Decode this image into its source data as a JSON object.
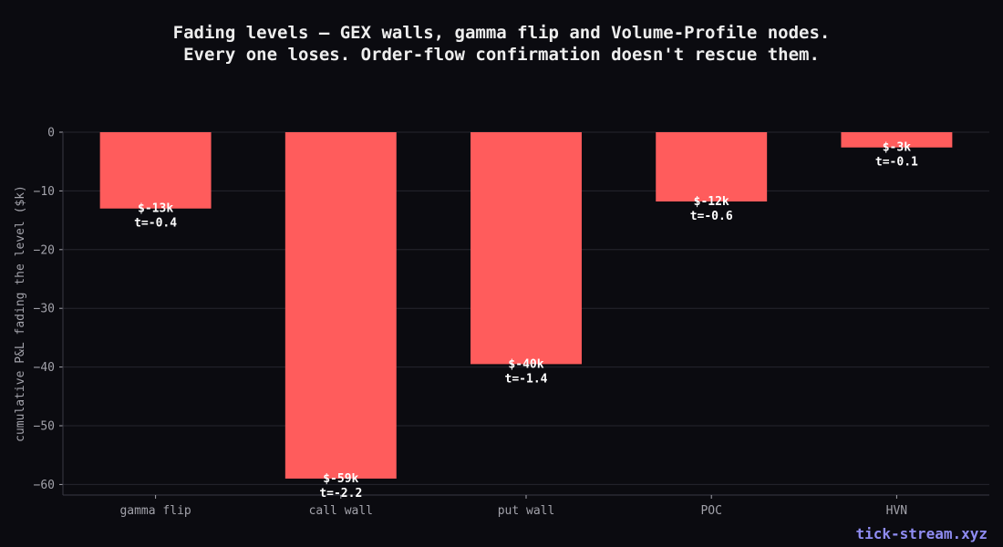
{
  "watermark": "tick-stream.xyz",
  "chart_data": {
    "type": "bar",
    "title_lines": [
      "Fading levels — GEX walls, gamma flip and Volume-Profile nodes.",
      "Every one loses. Order-flow confirmation doesn't rescue them."
    ],
    "xlabel": "",
    "ylabel": "cumulative P&L fading the level ($k)",
    "categories": [
      "gamma flip",
      "call wall",
      "put wall",
      "POC",
      "HVN"
    ],
    "values": [
      -13,
      -59,
      -39.5,
      -11.8,
      -2.6
    ],
    "bar_labels": [
      [
        "$-13k",
        "t=-0.4"
      ],
      [
        "$-59k",
        "t=-2.2"
      ],
      [
        "$-40k",
        "t=-1.4"
      ],
      [
        "$-12k",
        "t=-0.6"
      ],
      [
        "$-3k",
        "t=-0.1"
      ]
    ],
    "ylim": [
      -61.8,
      0
    ],
    "yticks": [
      0,
      -10,
      -20,
      -30,
      -40,
      -50,
      -60
    ],
    "ytick_labels": [
      "0",
      "−10",
      "−20",
      "−30",
      "−40",
      "−50",
      "−60"
    ],
    "grid": true,
    "bar_color": "#ff5c5c",
    "background": "#0b0b10",
    "grid_color": "#26262e",
    "text_color": "#a2a2aa"
  }
}
